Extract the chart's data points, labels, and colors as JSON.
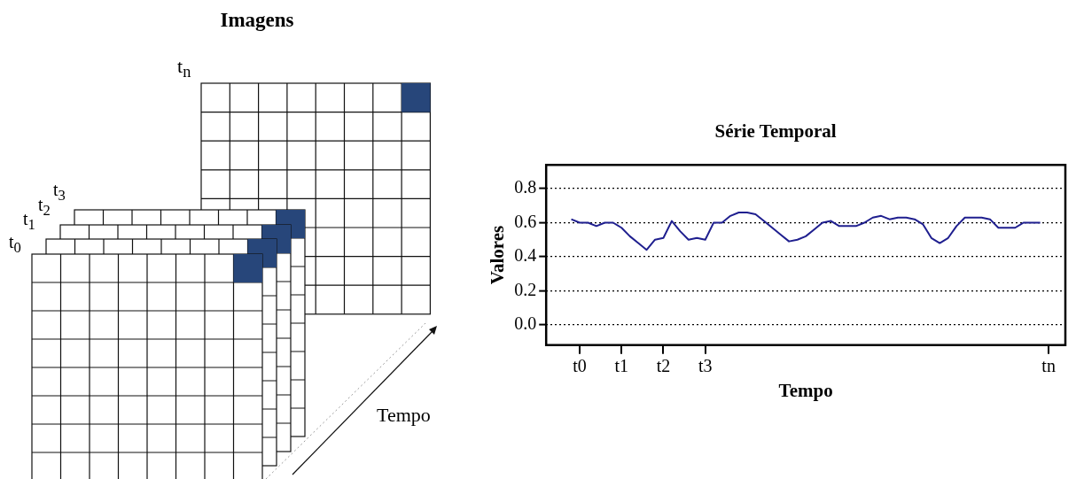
{
  "chart_data": [
    {
      "type": "other",
      "title": "Imagens",
      "annotations": [
        "t$_{n}$",
        "t$_{3}$",
        "t$_{2}$",
        "t$_{1}$",
        "t$_{0}$",
        "Tempo"
      ]
    },
    {
      "type": "line",
      "title": "Série Temporal",
      "xlabel": "Tempo",
      "ylabel": "Valores",
      "categories": [
        null,
        null,
        null,
        null,
        "t0",
        null,
        null,
        null,
        null,
        "t1",
        null,
        null,
        null,
        null,
        "t2",
        null,
        null,
        null,
        null,
        "t3",
        null,
        null,
        null,
        null,
        null,
        null,
        null,
        null,
        null,
        null,
        null,
        null,
        null,
        null,
        null,
        null,
        null,
        null,
        null,
        null,
        null,
        null,
        null,
        null,
        null,
        null,
        null,
        null,
        null,
        null,
        null,
        null,
        null,
        null,
        null,
        null,
        null,
        null,
        null,
        null,
        "tn",
        null,
        null
      ],
      "series": [
        {
          "color": "#1f1f8f",
          "values": [
            null,
            null,
            null,
            0.62,
            0.6,
            0.6,
            0.58,
            0.6,
            0.6,
            0.57,
            0.52,
            0.48,
            0.44,
            0.5,
            0.51,
            0.61,
            0.55,
            0.5,
            0.51,
            0.5,
            0.6,
            0.6,
            0.64,
            0.66,
            0.66,
            0.65,
            0.61,
            0.57,
            0.53,
            0.49,
            0.5,
            0.52,
            0.56,
            0.6,
            0.61,
            0.58,
            0.58,
            0.58,
            0.6,
            0.63,
            0.64,
            0.62,
            0.63,
            0.63,
            0.62,
            0.59,
            0.51,
            0.48,
            0.51,
            0.58,
            0.63,
            0.63,
            0.63,
            0.62,
            0.57,
            0.57,
            0.57,
            0.6,
            0.6,
            0.6,
            null,
            null,
            null
          ]
        }
      ],
      "ylim": [
        -0.12,
        0.94
      ],
      "yticks": [
        {
          "value": 0,
          "label": "0.0"
        },
        {
          "value": 0.2,
          "label": "0.2"
        },
        {
          "value": 0.4,
          "label": "0.4"
        },
        {
          "value": 0.6,
          "label": "0.6"
        },
        {
          "value": 0.8,
          "label": "0.8"
        }
      ],
      "grid": "y",
      "line_style": "solid",
      "legend": false
    }
  ]
}
